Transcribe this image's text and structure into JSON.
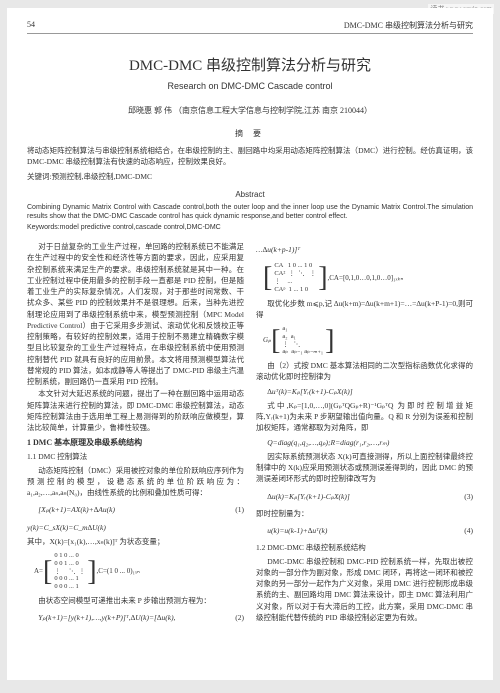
{
  "watermark": "读书 www.cqvip.com",
  "header": {
    "page": "54",
    "running": "DMC-DMC 串级控制算法分析与研究"
  },
  "title": "DMC-DMC 串级控制算法分析与研究",
  "subtitle": "Research on DMC-DMC Cascade control",
  "authors": "邱晓惠  郭 伟  （南京信息工程大学信息与控制学院,江苏 南京 210044）",
  "abstract_cn_head": "摘  要",
  "abstract_cn": "将动态矩阵控制算法与串级控制系统相结合，在串级控制的主、副回路中均采用动态矩阵控制算法（DMC）进行控制。经仿真证明，该 DMC-DMC 串级控制算法有快速的动态响应，控制效果良好。",
  "keywords_cn": "关键词:预测控制,串级控制,DMC-DMC",
  "abstract_en_head": "Abstract",
  "abstract_en": "Combining Dynamic Matrix Control with Cascade control,both the outer loop and the inner loop use the Dynamic Matrix Control.The simulation results show that the DMC-DMC Cascade control has quick dynamic response,and better control effect.",
  "keywords_en": "Keywords:model predictive control,cascade control,DMC-DMC",
  "left": {
    "p1": "对于日益复杂的工业生产过程，单回路的控制系统已不能满足在生产过程中的安全性和经济性等方面的要求，因此，应采用复杂控制系统来满足生产的要求。串级控制系统就是其中一种。在工业控制过程中使用最多的控制手段一直都是 PID 控制，但是随着工业生产的实际复杂情况，人们发现，对于那些时间常数、干扰众多、某些 PID 的控制效果并不是很理想。后来，当种先进控制理论应用到了串级控制系统中来，模型预测控制（MPC Model Predictive Control）由于它采用多步测试、滚动优化和反馈校正等控制策略，有较好的控制效果，适用于控制不易建立精确数字模型且比较复杂的工业生产过程特点，在串级控制系统中使用预测控制替代 PID 就具有良好的应用前景。本文将用预测模型算法代替常规的 PID 算法，如本成静等人等提出了 DMC-PID 串级主汽温控制系统，副回路仍一直采用 PID 控制。",
    "p2": "本文针对大延迟系统的问题，提出了一种在副回路中运用动态矩阵算法来进行控制的算法，即 DMC-DMC 串级控制算法，动态矩阵控制算法由于选用单工程上易测得到的阶跃响应做模型，算法比较简单，计算量少，鲁棒性较强。",
    "h1": "1 DMC 基本原理及串级系统结构",
    "h2a": "1.1 DMC 控制算法",
    "p3": "动态矩阵控制（DMC）采用被控对象的单位阶跃响应序列作为预测控制的模型，设稳态系统的单位阶跃响应为：a₁,a₂,…,aₙ,aₙ(N₀)，由线性系统的比例和叠加性质可得：",
    "eq1_l": "[Xₚ(k+1)=AX(k)+∆Au(k)",
    "eq1_r": "(1)",
    "eq2": " y(k)=C_sX(k)=C_m∆U(k)",
    "p4": "其中，X(k)=[x₁(k),…,xₙ(k)]ᵀ 为状态变量；",
    "m1": "A=",
    "m1_cells": "0 1 0 ... 0\n0 0 1 ... 0\n⋮     ⋱  ⋮\n0 0 0 ... 1\n0 0 0 ... 1",
    "m1_tail": ",C=(1 0 ... 0)₁ₓₙ",
    "p5": "由状态空间模型可递推出未来 P 步输出预测方程为：",
    "eq3_l": "Yₚ(k+1)=[y(k+1),…,y(k+P)]ᵀ,∆U(k)=[∆u(k),",
    "eq3_r": "(2)"
  },
  "right": {
    "p0": "…∆u(k+p-1)]ᵀ",
    "m2_label": "CA",
    "m2_cells": "CA   1 0 ... 1 0\nCA²  ⋮  ⋱   ⋮\n⋮    ...\nCAᵖ  1 ... 1 0",
    "m2_tail": ",CA=[0,1,0…0,1,0…0]₁ₓₖₙ",
    "p1": "取优化步数 m⩽p,记 ∆u(k+m)=∆u(k+m+1)=…=∆u(k+P-1)=0,则可得",
    "m3_label": "Gₚ",
    "m3_cells": "a₁\na₂  a₁\n⋮   ⋱\naₚ  aₚ₋₁ aₚ₋ₘ₊₁",
    "p2": "由（2）式按 DMC 基本算法相同的二次型指标函数优化求得的滚动优化即时控制律为",
    "eq4": "∆uᵀ(k)=Kₚ[Yᵣ(k+1)-CₚX(k)]",
    "p3": "式中,Kₚ=[1,0,…,0](GₚᵀQGₚ+R)⁻¹GₚᵀQ 为即时控制增益矩阵,Yᵣ(k+1)为未来 P 步期望输出值向量。Q 和 R 分别为误差和控制加权矩阵，通常都取为对角阵，即",
    "eq5": "Q=diag(q₁,q₂,…,qₚ);R=diag(r₁,r₂,…,rₘ)",
    "p4": "因实际系统预测状态 X(k)可直接测得，所以上面控制律最终控制律中的 X(k)应采用预测状态或预测误差得到的，因此 DMC 的预测误差闭环形式的即时控制律改写为",
    "eq6_l": "∆u(k)=Kₚ[Yᵣ(k+1)-CₚX(k)]",
    "eq6_r": "(3)",
    "p5": "即时控制量为：",
    "eq7_l": "u(k)=u(k-1)+∆uᵀ(k)",
    "eq7_r": "(4)",
    "h2b": "1.2 DMC-DMC 串级控制系统结构",
    "p6": "DMC-DMC 串级控制和 DMC-PID 控制系统一样，先取出被控对象的一部分作为副对象，形成 DMC 闭环，再将这一闭环和被控对象的另一部分一起作为广义对象，采用 DMC 进行控制形成串级系统的主、副回路均用 DMC 算法来设计，即主 DMC 算法利用广义对象，所以对于有大滞后的工控，此方案，采用 DMC-DMC 串级控制能代替传统的 PID 串级控制必定更为有效。"
  },
  "colors": {
    "text": "#333333",
    "bg": "#ffffff",
    "page_bg": "#e8e8e8",
    "rule": "#999999"
  }
}
